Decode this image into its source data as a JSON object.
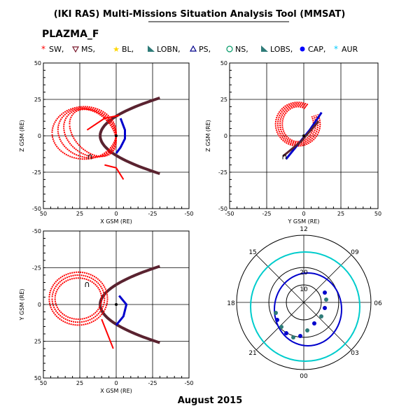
{
  "header": {
    "title": "(IKI RAS) Multi-Missions Situation Analysis Tool (MMSAT)",
    "instrument": "PLAZMA_F",
    "date": "August 2015"
  },
  "legend": [
    {
      "label": "SW,",
      "symbol": "asterisk",
      "color": "#ff0000"
    },
    {
      "label": "MS,",
      "symbol": "tri-down",
      "color": "#7a1a2e"
    },
    {
      "label": "BL,",
      "symbol": "star",
      "color": "#ffd700"
    },
    {
      "label": "LOBN,",
      "symbol": "wedge",
      "color": "#2e7b78"
    },
    {
      "label": "PS,",
      "symbol": "tri-up",
      "color": "#00008b"
    },
    {
      "label": "NS,",
      "symbol": "circle",
      "color": "#009966"
    },
    {
      "label": "LOBS,",
      "symbol": "wedge",
      "color": "#2e7b78"
    },
    {
      "label": "CAP,",
      "symbol": "dot",
      "color": "#0000ff"
    },
    {
      "label": "AUR",
      "symbol": "asterisk",
      "color": "#00ccff"
    }
  ],
  "colors": {
    "orbit": "#ff0000",
    "boundary": "#5a2330",
    "inner": "#0000cc",
    "aurora": "#00cccc"
  },
  "chart_data": [
    {
      "type": "scatter",
      "xlabel": "X GSM (RE)",
      "ylabel": "Z GSM (RE)",
      "xlim": [
        50,
        -50
      ],
      "ylim": [
        -50,
        50
      ],
      "xticks": [
        "50",
        "25",
        "0",
        "-25",
        "-50"
      ],
      "yticks": [
        "50",
        "25",
        "0",
        "-25",
        "-50"
      ],
      "grid": true
    },
    {
      "type": "scatter",
      "xlabel": "Y GSM (RE)",
      "ylabel": "Z GSM (RE)",
      "xlim": [
        -50,
        50
      ],
      "ylim": [
        -50,
        50
      ],
      "xticks": [
        "-50",
        "-25",
        "0",
        "25",
        "50"
      ],
      "yticks": [
        "50",
        "25",
        "0",
        "-25",
        "-50"
      ],
      "grid": true
    },
    {
      "type": "scatter",
      "xlabel": "X GSM (RE)",
      "ylabel": "Y GSM (RE)",
      "xlim": [
        50,
        -50
      ],
      "ylim": [
        50,
        -50
      ],
      "xticks": [
        "50",
        "25",
        "0",
        "-25",
        "-50"
      ],
      "yticks": [
        "-50",
        "-25",
        "0",
        "25",
        "50"
      ],
      "grid": true
    },
    {
      "type": "polar",
      "mlt_labels": [
        "12",
        "15",
        "18",
        "21",
        "00",
        "03",
        "06",
        "09"
      ],
      "ring_labels": [
        "20",
        "10"
      ]
    }
  ]
}
